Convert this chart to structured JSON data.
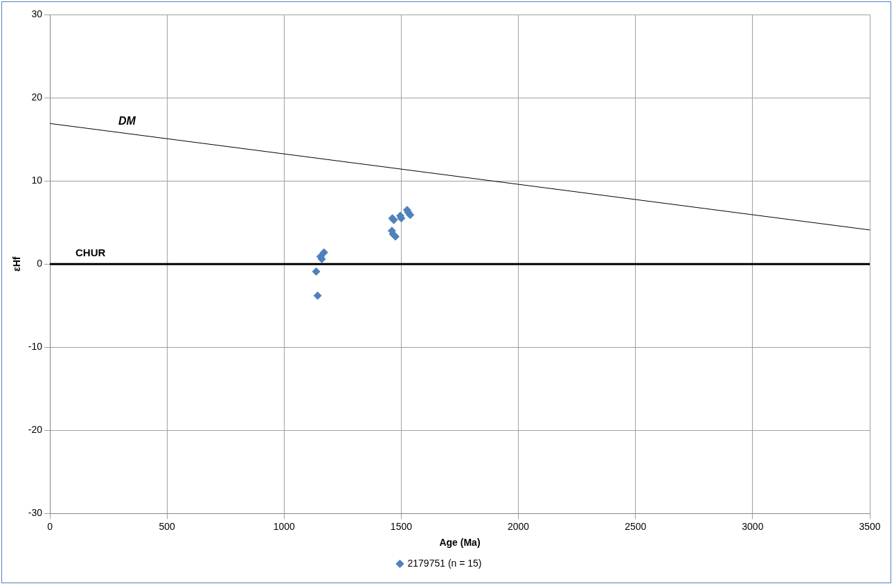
{
  "chart_data": {
    "type": "scatter",
    "xlabel": "Age (Ma)",
    "ylabel": "εHf",
    "xlim": [
      0,
      3500
    ],
    "xticks": [
      0,
      500,
      1000,
      1500,
      2000,
      2500,
      3000,
      3500
    ],
    "ylim": [
      -30,
      30
    ],
    "yticks": [
      -30,
      -20,
      -10,
      0,
      10,
      20,
      30
    ],
    "grid": true,
    "legend": "bottom",
    "marker": "diamond",
    "series": [
      {
        "name": "2179751 (n = 15)",
        "color": "#4f81bd",
        "x": [
          1170,
          1155,
          1161,
          1137,
          1143,
          1525,
          1530,
          1538,
          1496,
          1500,
          1462,
          1468,
          1460,
          1465,
          1475
        ],
        "values": [
          1.4,
          0.9,
          0.6,
          -0.9,
          -3.8,
          6.5,
          6.2,
          5.9,
          5.8,
          5.5,
          5.5,
          5.3,
          4.0,
          3.6,
          3.3
        ]
      },
      {
        "type": "line",
        "color": "#000000",
        "marker": "none",
        "x": [
          0,
          3500
        ],
        "values": [
          16.9,
          4.1
        ]
      }
    ],
    "ref_lines": [
      {
        "axis": "y",
        "value": 0,
        "label": "CHUR",
        "color": "#000000"
      }
    ],
    "annotations": [
      "DM"
    ]
  }
}
